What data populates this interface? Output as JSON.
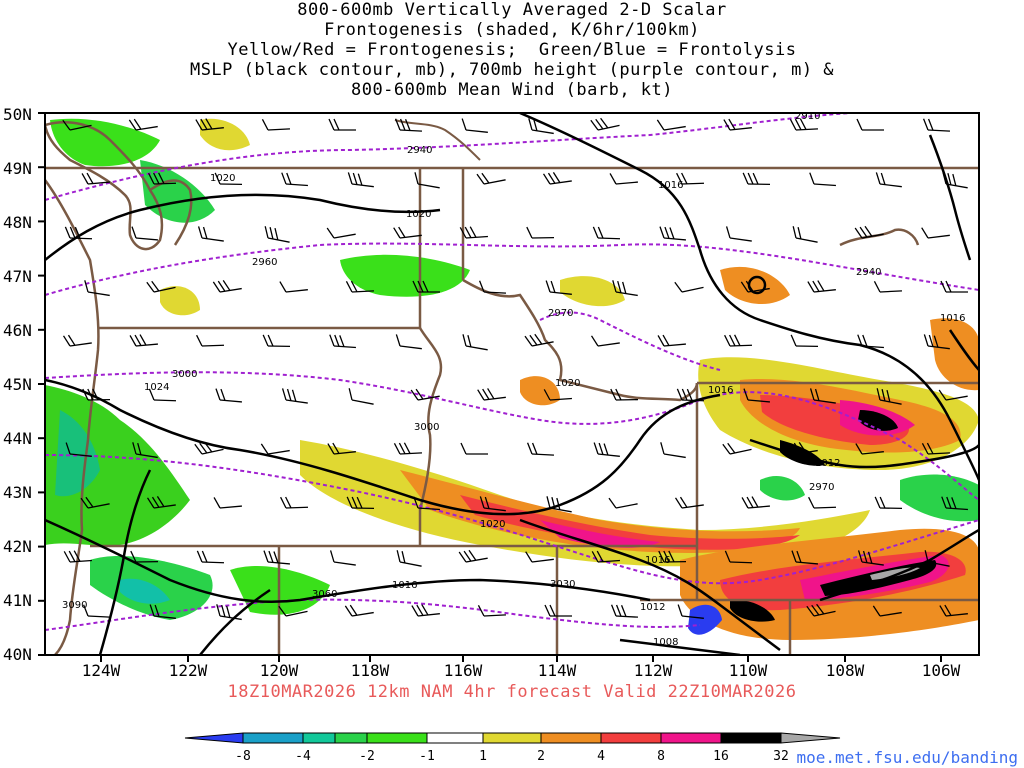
{
  "title_lines": [
    "800-600mb Vertically Averaged 2-D Scalar",
    "Frontogenesis (shaded, K/6hr/100km)",
    "Yellow/Red = Frontogenesis;  Green/Blue = Frontolysis",
    "MSLP (black contour, mb), 700mb height (purple contour, m) &",
    "800-600mb Mean Wind (barb, kt)"
  ],
  "lat_labels": [
    "50N",
    "49N",
    "48N",
    "47N",
    "46N",
    "45N",
    "44N",
    "43N",
    "42N",
    "41N",
    "40N"
  ],
  "lon_labels": [
    "124W",
    "122W",
    "120W",
    "118W",
    "116W",
    "114W",
    "112W",
    "110W",
    "108W",
    "106W"
  ],
  "footer": "18Z10MAR2026 12km NAM 4hr forecast Valid 22Z10MAR2026",
  "credit": "moe.met.fsu.edu/banding",
  "colorbar": {
    "labels": [
      "-8",
      "-4",
      "-2",
      "-1",
      "1",
      "2",
      "4",
      "8",
      "16",
      "32"
    ],
    "colors": [
      "#2a3cf0",
      "#1aa0c8",
      "#12c89a",
      "#2ad24a",
      "#3ae01a",
      "#ffffff",
      "#e0d832",
      "#ee8e22",
      "#f23e3e",
      "#f0148a",
      "#000000",
      "#a8a8a8"
    ]
  },
  "contours": {
    "mslp": [
      "1020",
      "1016",
      "1020",
      "1024",
      "1020",
      "1016",
      "1016",
      "1012",
      "1016",
      "1016",
      "1012",
      "1008",
      "1020"
    ],
    "height700": [
      "2910",
      "2940",
      "2960",
      "2940",
      "2970",
      "3000",
      "3000",
      "2970",
      "3030",
      "3060",
      "3090"
    ]
  },
  "colors": {
    "border": "#7a5a44",
    "mslp": "#000000",
    "height": "#a020d0",
    "barb": "#000000"
  }
}
